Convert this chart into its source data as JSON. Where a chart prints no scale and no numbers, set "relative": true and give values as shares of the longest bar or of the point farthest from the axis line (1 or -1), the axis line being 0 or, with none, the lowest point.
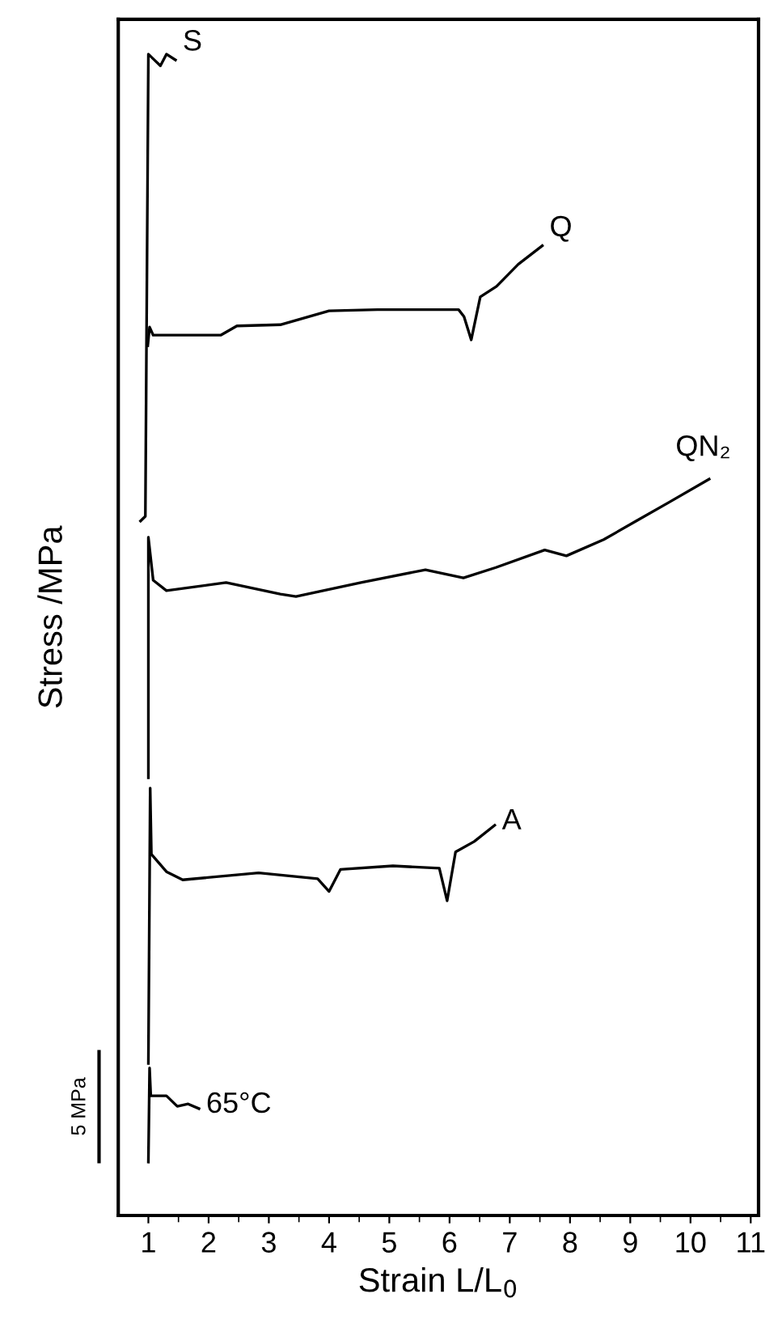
{
  "chart_data": {
    "type": "line",
    "relative": true,
    "xlabel": "Strain L/L$_{0}$",
    "ylabel": "Stress /MPa",
    "xlim": [
      0.5,
      11.13
    ],
    "xticks": [
      1,
      2,
      3,
      4,
      5,
      6,
      7,
      8,
      9,
      10,
      11
    ],
    "grid": false,
    "legend": false,
    "marker": "none",
    "line_style": "solid",
    "annotations": [
      "5 MPa"
    ],
    "series": [
      {
        "name": "S",
        "color": "#000000",
        "x": [
          0.87,
          0.95,
          1.0,
          1.1,
          1.2,
          1.3,
          1.45
        ],
        "values": [
          0.598,
          0.602,
          1.0,
          0.995,
          0.99,
          1.0,
          0.995
        ]
      },
      {
        "name": "Q",
        "color": "#000000",
        "x": [
          0.99,
          1.02,
          1.08,
          2.2,
          2.47,
          3.19,
          4.0,
          4.8,
          5.52,
          6.15,
          6.24,
          6.36,
          6.51,
          6.78,
          7.14,
          7.54
        ],
        "values": [
          0.749,
          0.765,
          0.758,
          0.758,
          0.766,
          0.767,
          0.779,
          0.78,
          0.78,
          0.78,
          0.774,
          0.754,
          0.791,
          0.8,
          0.819,
          0.835
        ]
      },
      {
        "name": "QN₂",
        "color": "#000000",
        "x": [
          1.0,
          1.0,
          1.08,
          1.3,
          2.29,
          3.19,
          3.45,
          4.53,
          5.6,
          6.23,
          6.77,
          7.58,
          7.94,
          8.56,
          9.1,
          9.64,
          10.31
        ],
        "values": [
          0.377,
          0.584,
          0.547,
          0.538,
          0.545,
          0.535,
          0.533,
          0.545,
          0.556,
          0.549,
          0.558,
          0.573,
          0.568,
          0.582,
          0.598,
          0.614,
          0.634
        ]
      },
      {
        "name": "A",
        "color": "#000000",
        "x": [
          1.0,
          1.03,
          1.05,
          1.3,
          1.57,
          2.83,
          3.81,
          4.0,
          4.19,
          5.06,
          5.83,
          5.96,
          6.1,
          6.41,
          6.75
        ],
        "values": [
          0.131,
          0.368,
          0.311,
          0.296,
          0.289,
          0.295,
          0.29,
          0.279,
          0.298,
          0.301,
          0.299,
          0.271,
          0.313,
          0.322,
          0.336
        ]
      },
      {
        "name": "65°C",
        "color": "#000000",
        "x": [
          1.0,
          1.02,
          1.04,
          1.3,
          1.48,
          1.66,
          1.84
        ],
        "values": [
          0.046,
          0.127,
          0.103,
          0.103,
          0.094,
          0.096,
          0.092
        ]
      }
    ]
  }
}
